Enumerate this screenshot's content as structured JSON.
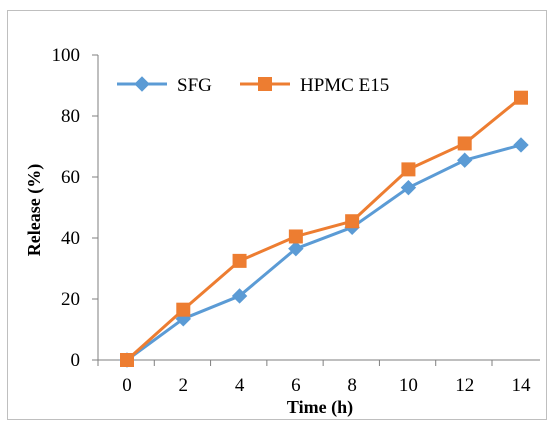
{
  "chart_data": {
    "type": "line",
    "xlabel": "Time (h)",
    "ylabel": "Release (%)",
    "x": [
      0,
      2,
      4,
      6,
      8,
      10,
      12,
      14
    ],
    "xticks": [
      "0",
      "2",
      "4",
      "6",
      "8",
      "10",
      "12",
      "14"
    ],
    "yticks": [
      "0",
      "20",
      "40",
      "60",
      "80",
      "100"
    ],
    "ylim": [
      0,
      100
    ],
    "grid": false,
    "legend_position": "top-left",
    "series": [
      {
        "name": "SFG",
        "color": "#5b9bd5",
        "marker": "diamond",
        "values": [
          0,
          13.5,
          21,
          36.5,
          43.5,
          56.5,
          65.5,
          70.5
        ]
      },
      {
        "name": "HPMC E15",
        "color": "#ed7d31",
        "marker": "square",
        "values": [
          0,
          16.5,
          32.5,
          40.5,
          45.5,
          62.5,
          71,
          86
        ]
      }
    ]
  }
}
